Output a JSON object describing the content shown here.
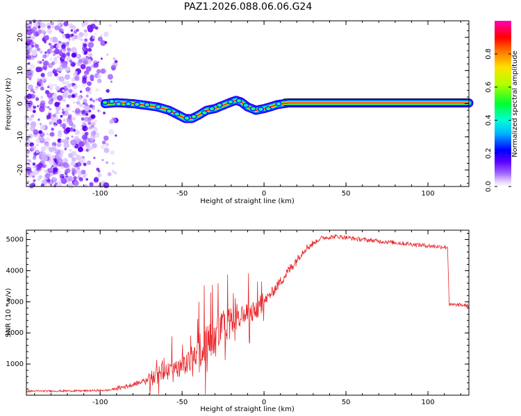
{
  "title": "PAZ1.2026.088.06.06.G24",
  "colors": {
    "snr_line": "#e8262a",
    "scatter": "#8a2be2",
    "track_colors": [
      "#2a00ff",
      "#00c8ff",
      "#00ff40",
      "#ffe000",
      "#ff2020"
    ]
  },
  "chart_data": [
    {
      "type": "heatmap",
      "name": "spectrogram",
      "xlabel": "Height of straight line (km)",
      "ylabel": "Frequency (Hz)",
      "xlim": [
        -145,
        125
      ],
      "ylim": [
        -25,
        25
      ],
      "xticks": [
        -100,
        -50,
        0,
        50,
        100
      ],
      "yticks": [
        -20,
        -10,
        0,
        10,
        20
      ],
      "colorbar": {
        "label": "Normalized spectral amplitude",
        "range": [
          0,
          1
        ],
        "ticks": [
          0.0,
          0.2,
          0.4,
          0.6,
          0.8
        ],
        "tick_labels": [
          "0.0",
          "0.2",
          "0.4",
          "0.6",
          "0.8"
        ]
      },
      "track": {
        "x": [
          -97,
          -90,
          -80,
          -72,
          -65,
          -58,
          -52,
          -48,
          -44,
          -40,
          -35,
          -30,
          -25,
          -20,
          -17,
          -14,
          -10,
          -5,
          0,
          5,
          8,
          12,
          15,
          20,
          30,
          40,
          60,
          80,
          100,
          125
        ],
        "y": [
          0,
          0.3,
          0,
          -0.5,
          -1,
          -2,
          -3.5,
          -4.5,
          -4.5,
          -3.5,
          -2,
          -1.5,
          -0.5,
          0.5,
          1,
          0.5,
          -1,
          -2,
          -1.5,
          -0.8,
          -0.3,
          0,
          0.2,
          0.2,
          0.2,
          0.2,
          0.2,
          0.2,
          0.2,
          0.2
        ],
        "amplitude": [
          0.1,
          0.3,
          0.3,
          0.3,
          0.35,
          0.3,
          0.35,
          0.4,
          0.4,
          0.45,
          0.5,
          0.55,
          0.6,
          0.7,
          0.75,
          0.8,
          0.85,
          0.85,
          0.9,
          0.95,
          0.98,
          1.0,
          1.0,
          1.0,
          1.0,
          1.0,
          1.0,
          1.0,
          1.0,
          1.0
        ]
      },
      "noise_region_x": [
        -145,
        -90
      ]
    },
    {
      "type": "line",
      "name": "snr",
      "xlabel": "Height of straight line (km)",
      "ylabel": "SNR (10 * v/v)",
      "xlim": [
        -145,
        125
      ],
      "ylim": [
        0,
        5300
      ],
      "xticks": [
        -100,
        -50,
        0,
        50,
        100
      ],
      "yticks": [
        1000,
        2000,
        3000,
        4000,
        5000
      ],
      "trend": {
        "x": [
          -145,
          -110,
          -95,
          -85,
          -75,
          -68,
          -62,
          -55,
          -45,
          -35,
          -25,
          -15,
          -5,
          5,
          15,
          25,
          35,
          45,
          60,
          80,
          100,
          112,
          113,
          120,
          125
        ],
        "y": [
          130,
          140,
          160,
          270,
          420,
          550,
          780,
          700,
          1100,
          1700,
          2100,
          2500,
          2700,
          3300,
          4000,
          4700,
          5050,
          5100,
          5000,
          4900,
          4800,
          4750,
          2900,
          2900,
          2870
        ]
      }
    }
  ]
}
